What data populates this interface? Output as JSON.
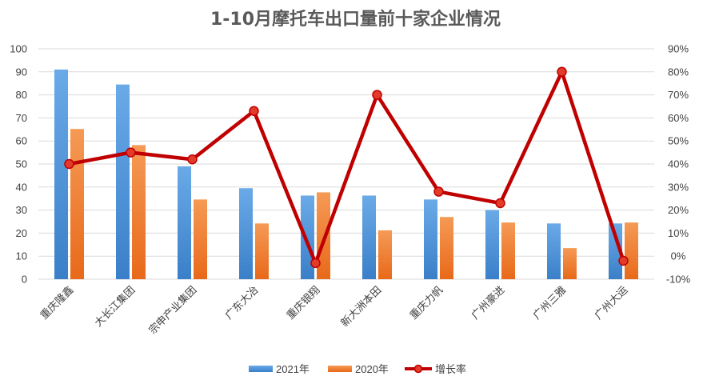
{
  "chart_data": {
    "type": "bar",
    "title": "1-10月摩托车出口量前十家企业情况",
    "categories": [
      "重庆隆鑫",
      "大长江集团",
      "宗申产业集团",
      "广东大冶",
      "重庆银翔",
      "新大洲本田",
      "重庆力帆",
      "广州豪进",
      "广州三雅",
      "广州大运"
    ],
    "series": [
      {
        "name": "2021年",
        "type": "bar",
        "axis": "left",
        "color": "#4a8fd6",
        "values": [
          91,
          84.5,
          49,
          39.5,
          36.3,
          36.3,
          34.6,
          30,
          24.2,
          24.2
        ]
      },
      {
        "name": "2020年",
        "type": "bar",
        "axis": "left",
        "color": "#f07f2e",
        "values": [
          65.2,
          58.2,
          34.6,
          24.2,
          37.7,
          21.2,
          27,
          24.6,
          13.5,
          24.6
        ]
      },
      {
        "name": "增长率",
        "type": "line",
        "axis": "right",
        "color": "#c00000",
        "values": [
          0.4,
          0.45,
          0.42,
          0.63,
          -0.03,
          0.7,
          0.28,
          0.23,
          0.8,
          -0.02
        ]
      }
    ],
    "y_left": {
      "range": [
        0,
        100
      ],
      "ticks": [
        "0",
        "10",
        "20",
        "30",
        "40",
        "50",
        "60",
        "70",
        "80",
        "90",
        "100"
      ]
    },
    "y_right": {
      "range": [
        -0.1,
        0.9
      ],
      "ticks": [
        "-10%",
        "0%",
        "10%",
        "20%",
        "30%",
        "40%",
        "50%",
        "60%",
        "70%",
        "80%",
        "90%"
      ]
    },
    "grid": true,
    "legend_position": "bottom"
  }
}
